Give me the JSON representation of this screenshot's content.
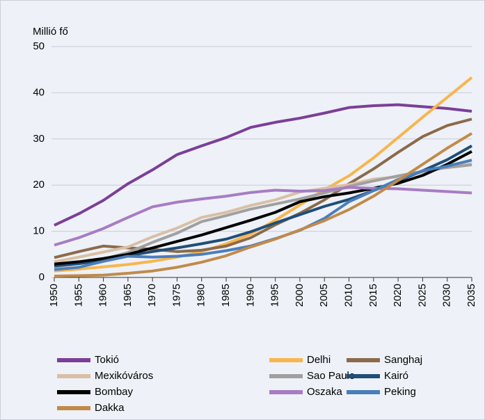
{
  "chart_data": {
    "type": "line",
    "ylabel": "Millió fő",
    "x": [
      1950,
      1955,
      1960,
      1965,
      1970,
      1975,
      1980,
      1985,
      1990,
      1995,
      2000,
      2005,
      2010,
      2015,
      2020,
      2025,
      2030,
      2035
    ],
    "xlim": [
      1950,
      2035
    ],
    "xticks": [
      1950,
      1955,
      1960,
      1965,
      1970,
      1975,
      1980,
      1985,
      1990,
      1995,
      2000,
      2005,
      2010,
      2015,
      2020,
      2025,
      2030,
      2035
    ],
    "ylim": [
      0,
      50
    ],
    "yticks": [
      0,
      10,
      20,
      30,
      40,
      50
    ],
    "grid": true,
    "series": [
      {
        "name": "Tokió",
        "color": "#7b3f98",
        "values": [
          11.3,
          13.8,
          16.7,
          20.3,
          23.3,
          26.6,
          28.5,
          30.3,
          32.5,
          33.6,
          34.5,
          35.6,
          36.8,
          37.2,
          37.4,
          37.0,
          36.6,
          36.0
        ]
      },
      {
        "name": "Delhi",
        "color": "#f9b54d",
        "values": [
          1.4,
          1.8,
          2.3,
          2.8,
          3.5,
          4.4,
          5.6,
          7.3,
          9.4,
          12.4,
          15.7,
          19.0,
          22.0,
          25.9,
          30.3,
          34.7,
          39.0,
          43.3
        ]
      },
      {
        "name": "Sanghaj",
        "color": "#8b6a4a",
        "values": [
          4.3,
          5.6,
          6.8,
          6.4,
          6.1,
          5.6,
          5.9,
          6.8,
          8.6,
          11.4,
          13.9,
          16.8,
          20.3,
          23.5,
          27.1,
          30.5,
          32.9,
          34.3
        ]
      },
      {
        "name": "Mexikóváros",
        "color": "#d9bfa5",
        "values": [
          3.4,
          4.4,
          5.5,
          6.6,
          8.8,
          10.7,
          13.0,
          14.1,
          15.6,
          16.8,
          18.5,
          19.3,
          20.1,
          21.3,
          21.8,
          22.8,
          23.9,
          24.6
        ]
      },
      {
        "name": "Sao Paulo",
        "color": "#a0a0a0",
        "values": [
          2.3,
          3.0,
          4.0,
          5.4,
          7.6,
          9.6,
          12.1,
          13.4,
          14.8,
          15.9,
          17.0,
          18.3,
          19.7,
          20.9,
          22.0,
          23.0,
          23.8,
          24.4
        ]
      },
      {
        "name": "Kairó",
        "color": "#1f4e79",
        "values": [
          2.5,
          3.0,
          3.7,
          4.7,
          5.6,
          6.4,
          7.3,
          8.3,
          9.9,
          11.8,
          13.6,
          15.4,
          16.9,
          18.8,
          20.9,
          23.1,
          25.5,
          28.5
        ]
      },
      {
        "name": "Bombay",
        "color": "#000000",
        "values": [
          2.9,
          3.4,
          4.1,
          5.0,
          6.4,
          7.8,
          9.2,
          10.8,
          12.4,
          14.1,
          16.4,
          17.5,
          18.3,
          19.3,
          20.4,
          22.1,
          24.5,
          27.3
        ]
      },
      {
        "name": "Oszaka",
        "color": "#a77cc3",
        "values": [
          7.0,
          8.6,
          10.6,
          13.0,
          15.3,
          16.3,
          17.0,
          17.6,
          18.4,
          18.9,
          18.7,
          18.8,
          19.5,
          19.3,
          19.2,
          18.9,
          18.6,
          18.3
        ]
      },
      {
        "name": "Peking",
        "color": "#4a7ebb",
        "values": [
          1.7,
          2.2,
          3.5,
          4.6,
          4.4,
          4.6,
          5.0,
          5.8,
          6.8,
          8.4,
          10.2,
          12.8,
          16.4,
          18.8,
          21.2,
          23.1,
          24.1,
          25.4
        ]
      },
      {
        "name": "Dakka",
        "color": "#c08b4a",
        "values": [
          0.3,
          0.4,
          0.5,
          0.9,
          1.4,
          2.2,
          3.3,
          4.7,
          6.6,
          8.3,
          10.3,
          12.3,
          14.7,
          17.6,
          21.0,
          24.5,
          28.0,
          31.2
        ]
      }
    ]
  }
}
